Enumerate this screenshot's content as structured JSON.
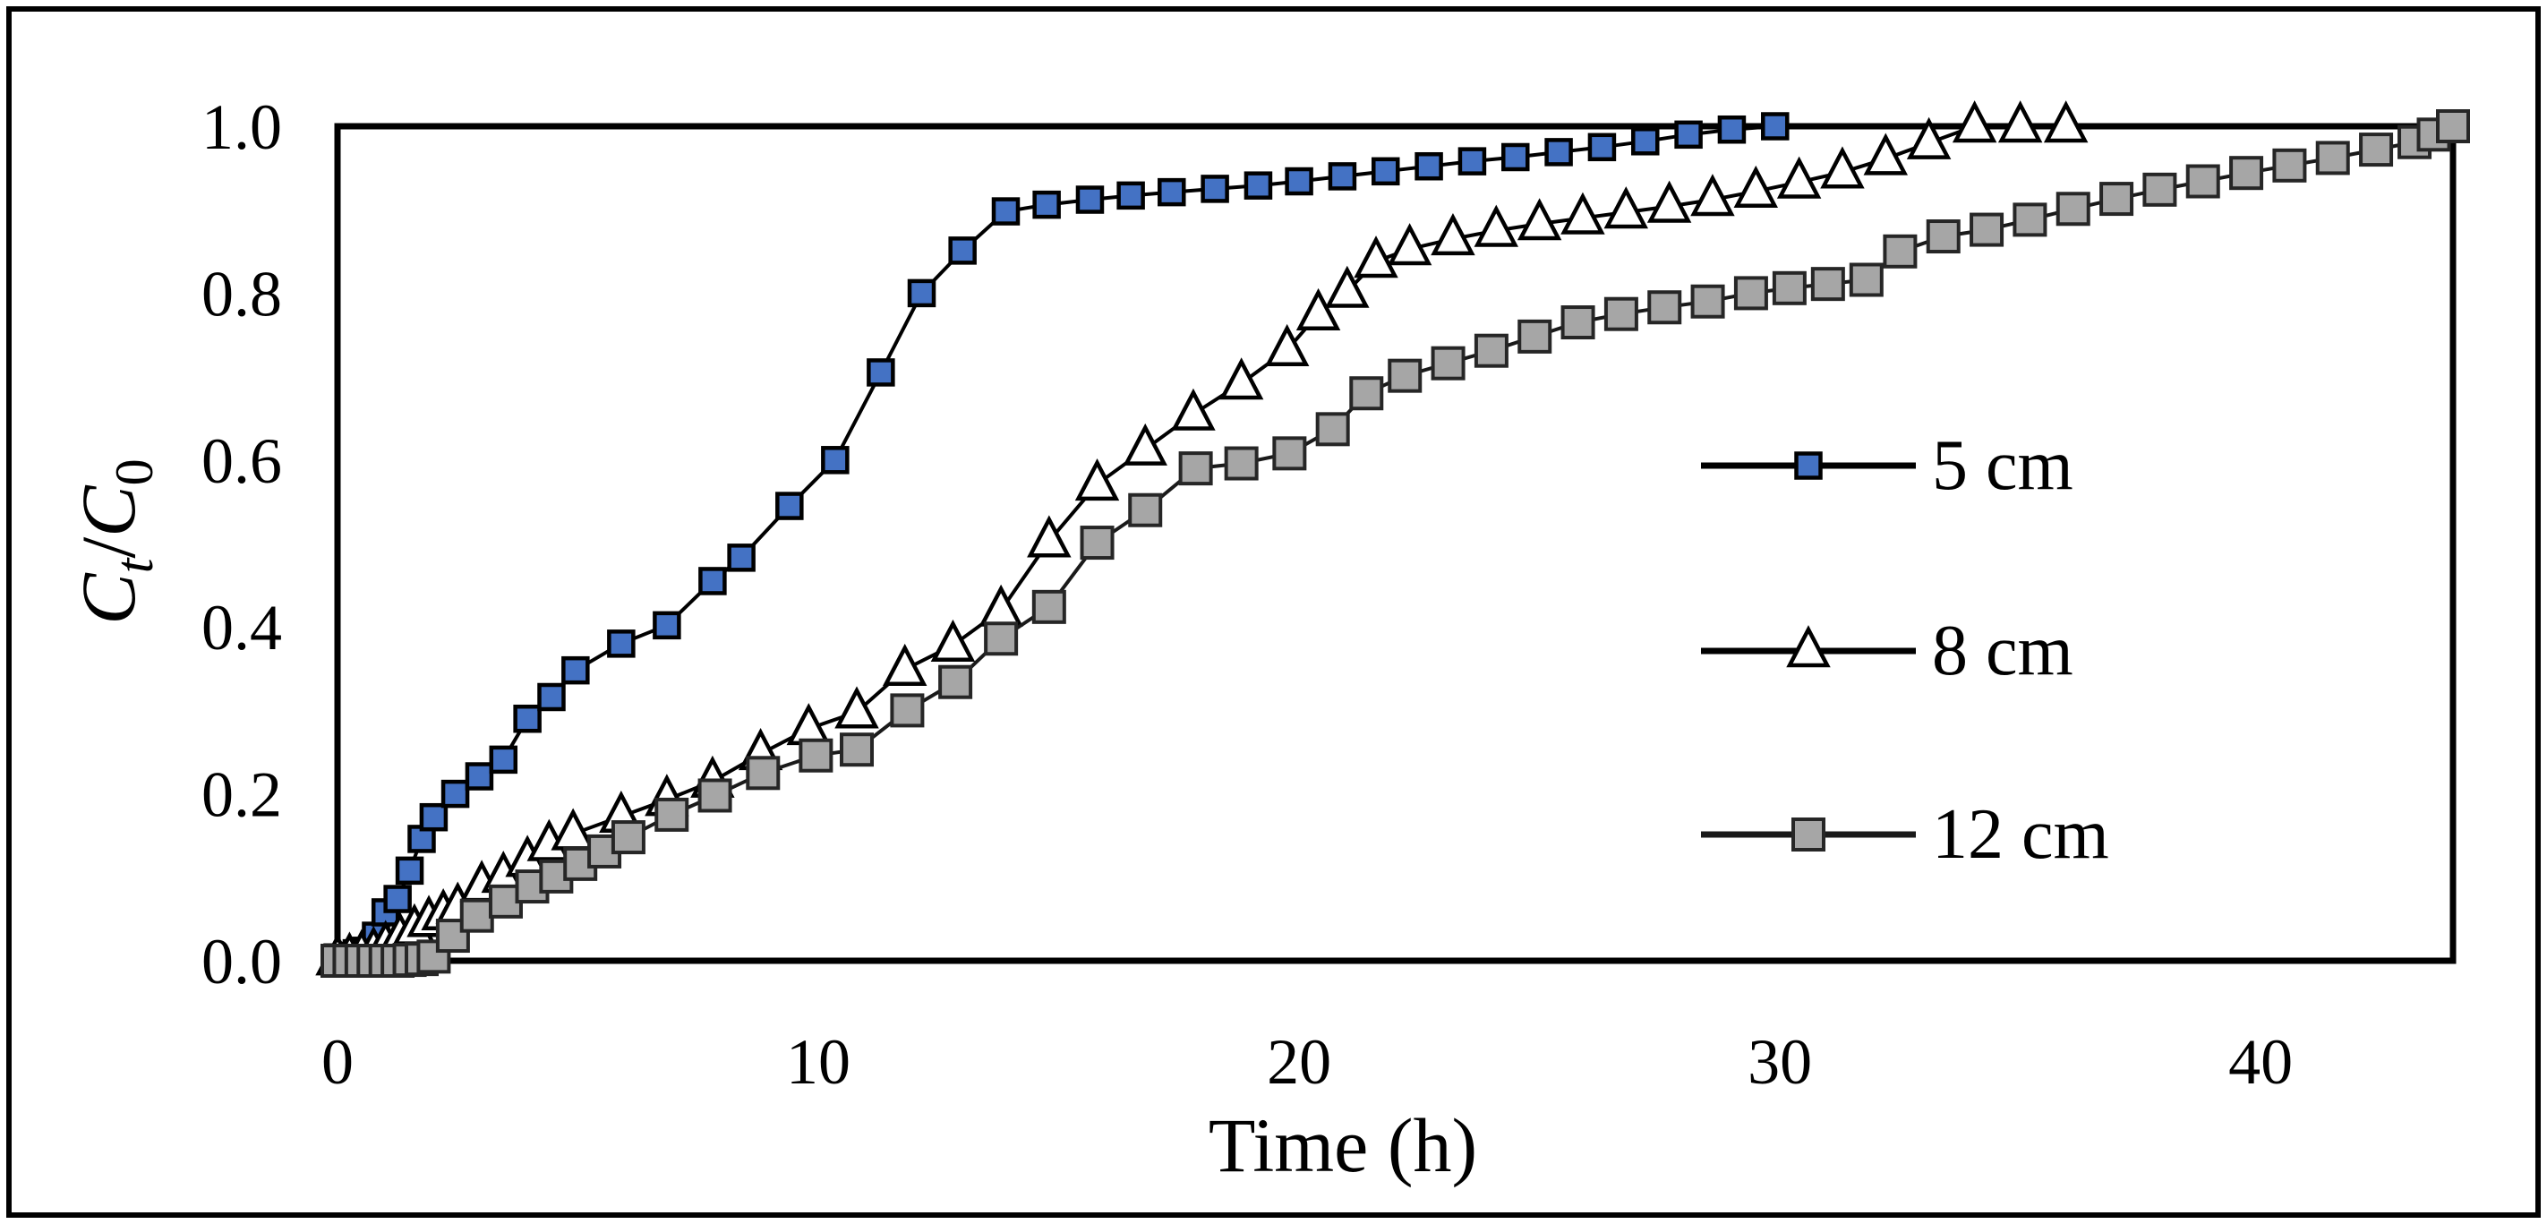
{
  "figure": {
    "background": "#FFFFFF",
    "outer_border_color": "#000000"
  },
  "chart_data": {
    "type": "line",
    "title": "",
    "xlabel": "Time (h)",
    "ylabel": "Ct/C0",
    "ylabel_parts": [
      {
        "text": "C",
        "italic": true,
        "sub": false
      },
      {
        "text": "t",
        "italic": true,
        "sub": true
      },
      {
        "text": "/",
        "italic": false,
        "sub": false
      },
      {
        "text": "C",
        "italic": true,
        "sub": false
      },
      {
        "text": "0",
        "italic": false,
        "sub": true
      }
    ],
    "xlim": [
      0,
      44
    ],
    "ylim": [
      0,
      1.0
    ],
    "grid": false,
    "legend_position": "inside-right",
    "x_ticks": {
      "values": [
        0,
        10,
        20,
        30,
        40
      ],
      "labels": [
        "0",
        "10",
        "20",
        "30",
        "40"
      ]
    },
    "y_ticks": {
      "values": [
        0,
        0.2,
        0.4,
        0.6,
        0.8,
        1.0
      ],
      "labels": [
        "0.0",
        "0.2",
        "0.4",
        "0.6",
        "0.8",
        "1.0"
      ]
    },
    "series": [
      {
        "name": "5 cm",
        "marker": "square",
        "marker_fill": "#4472C4",
        "marker_stroke": "#000000",
        "marker_size": 27,
        "marker_stroke_width": 4.5,
        "line_color": "#000000",
        "line_width": 4,
        "points": [
          [
            0,
            0.004
          ],
          [
            0.2,
            0.006
          ],
          [
            0.4,
            0.009
          ],
          [
            0.6,
            0.012
          ],
          [
            0.8,
            0.03
          ],
          [
            1.0,
            0.058
          ],
          [
            1.25,
            0.074
          ],
          [
            1.5,
            0.108
          ],
          [
            1.75,
            0.146
          ],
          [
            2.0,
            0.172
          ],
          [
            2.45,
            0.2
          ],
          [
            2.95,
            0.221
          ],
          [
            3.45,
            0.241
          ],
          [
            3.95,
            0.29
          ],
          [
            4.45,
            0.316
          ],
          [
            4.95,
            0.348
          ],
          [
            5.9,
            0.38
          ],
          [
            6.85,
            0.402
          ],
          [
            7.8,
            0.455
          ],
          [
            8.4,
            0.483
          ],
          [
            9.4,
            0.545
          ],
          [
            10.35,
            0.6
          ],
          [
            11.3,
            0.705
          ],
          [
            12.15,
            0.8
          ],
          [
            13.0,
            0.851
          ],
          [
            13.9,
            0.898
          ],
          [
            14.75,
            0.906
          ],
          [
            15.65,
            0.912
          ],
          [
            16.5,
            0.917
          ],
          [
            17.35,
            0.921
          ],
          [
            18.25,
            0.925
          ],
          [
            19.15,
            0.929
          ],
          [
            20.0,
            0.934
          ],
          [
            20.9,
            0.94
          ],
          [
            21.8,
            0.946
          ],
          [
            22.7,
            0.952
          ],
          [
            23.6,
            0.958
          ],
          [
            24.5,
            0.963
          ],
          [
            25.4,
            0.969
          ],
          [
            26.3,
            0.975
          ],
          [
            27.2,
            0.982
          ],
          [
            28.1,
            0.99
          ],
          [
            29.0,
            0.996
          ],
          [
            29.9,
            1.0
          ]
        ]
      },
      {
        "name": "8 cm",
        "marker": "triangle",
        "marker_fill": "#FFFFFF",
        "marker_stroke": "#000000",
        "marker_size": 40,
        "marker_stroke_width": 4.5,
        "line_color": "#000000",
        "line_width": 4,
        "points": [
          [
            0,
            0.002
          ],
          [
            0.25,
            0.004
          ],
          [
            0.5,
            0.007
          ],
          [
            0.75,
            0.011
          ],
          [
            1.0,
            0.018
          ],
          [
            1.3,
            0.028
          ],
          [
            1.6,
            0.038
          ],
          [
            1.9,
            0.048
          ],
          [
            2.2,
            0.056
          ],
          [
            2.5,
            0.064
          ],
          [
            3.0,
            0.09
          ],
          [
            3.45,
            0.101
          ],
          [
            3.95,
            0.12
          ],
          [
            4.4,
            0.139
          ],
          [
            4.9,
            0.152
          ],
          [
            5.9,
            0.173
          ],
          [
            6.85,
            0.193
          ],
          [
            7.8,
            0.215
          ],
          [
            8.8,
            0.248
          ],
          [
            9.8,
            0.278
          ],
          [
            10.8,
            0.298
          ],
          [
            11.8,
            0.349
          ],
          [
            12.8,
            0.378
          ],
          [
            13.8,
            0.42
          ],
          [
            14.8,
            0.503
          ],
          [
            15.8,
            0.571
          ],
          [
            16.8,
            0.613
          ],
          [
            17.8,
            0.655
          ],
          [
            18.8,
            0.692
          ],
          [
            19.75,
            0.732
          ],
          [
            20.4,
            0.775
          ],
          [
            21.0,
            0.802
          ],
          [
            21.6,
            0.838
          ],
          [
            22.3,
            0.853
          ],
          [
            23.2,
            0.865
          ],
          [
            24.1,
            0.875
          ],
          [
            25.0,
            0.883
          ],
          [
            25.9,
            0.89
          ],
          [
            26.8,
            0.897
          ],
          [
            27.7,
            0.904
          ],
          [
            28.6,
            0.912
          ],
          [
            29.5,
            0.922
          ],
          [
            30.4,
            0.933
          ],
          [
            31.3,
            0.945
          ],
          [
            32.2,
            0.961
          ],
          [
            33.1,
            0.98
          ],
          [
            34.05,
            1.0
          ],
          [
            35.0,
            1.0
          ],
          [
            35.95,
            1.0
          ]
        ]
      },
      {
        "name": "12 cm",
        "marker": "square",
        "marker_fill": "#A6A6A6",
        "marker_stroke": "#262626",
        "marker_size": 34,
        "marker_stroke_width": 4,
        "line_color": "#1a1a1a",
        "line_width": 4,
        "points": [
          [
            0,
            0
          ],
          [
            0.25,
            0
          ],
          [
            0.5,
            0
          ],
          [
            0.75,
            0
          ],
          [
            1.0,
            0
          ],
          [
            1.25,
            0
          ],
          [
            1.5,
            0.001
          ],
          [
            1.75,
            0.002
          ],
          [
            2.0,
            0.005
          ],
          [
            2.4,
            0.03
          ],
          [
            2.9,
            0.054
          ],
          [
            3.5,
            0.071
          ],
          [
            4.05,
            0.089
          ],
          [
            4.55,
            0.101
          ],
          [
            5.05,
            0.116
          ],
          [
            5.55,
            0.131
          ],
          [
            6.05,
            0.148
          ],
          [
            6.95,
            0.175
          ],
          [
            7.85,
            0.198
          ],
          [
            8.85,
            0.225
          ],
          [
            9.95,
            0.246
          ],
          [
            10.8,
            0.253
          ],
          [
            11.85,
            0.3
          ],
          [
            12.85,
            0.334
          ],
          [
            13.8,
            0.386
          ],
          [
            14.8,
            0.424
          ],
          [
            15.8,
            0.501
          ],
          [
            16.8,
            0.54
          ],
          [
            17.85,
            0.59
          ],
          [
            18.8,
            0.596
          ],
          [
            19.8,
            0.608
          ],
          [
            20.7,
            0.637
          ],
          [
            21.4,
            0.68
          ],
          [
            22.2,
            0.701
          ],
          [
            23.1,
            0.716
          ],
          [
            24.0,
            0.731
          ],
          [
            24.9,
            0.748
          ],
          [
            25.8,
            0.765
          ],
          [
            26.7,
            0.775
          ],
          [
            27.6,
            0.783
          ],
          [
            28.5,
            0.79
          ],
          [
            29.4,
            0.8
          ],
          [
            30.2,
            0.806
          ],
          [
            31.0,
            0.811
          ],
          [
            31.8,
            0.816
          ],
          [
            32.5,
            0.85
          ],
          [
            33.4,
            0.868
          ],
          [
            34.3,
            0.876
          ],
          [
            35.2,
            0.888
          ],
          [
            36.1,
            0.901
          ],
          [
            37.0,
            0.913
          ],
          [
            37.9,
            0.924
          ],
          [
            38.8,
            0.934
          ],
          [
            39.7,
            0.944
          ],
          [
            40.6,
            0.953
          ],
          [
            41.5,
            0.962
          ],
          [
            42.4,
            0.972
          ],
          [
            43.2,
            0.981
          ],
          [
            43.6,
            0.99
          ],
          [
            44.0,
            1.0
          ]
        ]
      }
    ]
  }
}
